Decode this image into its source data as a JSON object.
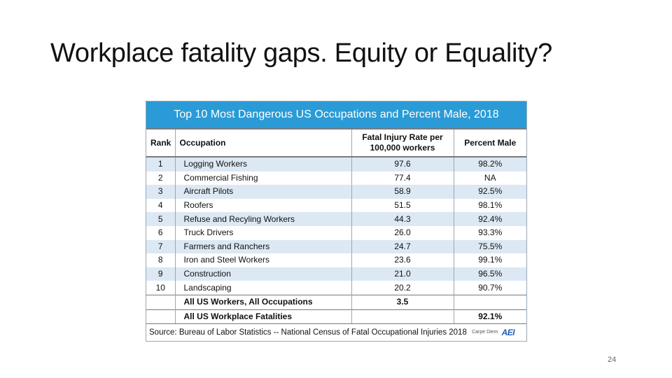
{
  "slide": {
    "title": "Workplace fatality gaps. Equity or Equality?",
    "page_number": "24"
  },
  "table": {
    "header": "Top 10 Most Dangerous US Occupations and Percent Male, 2018",
    "columns": {
      "rank": "Rank",
      "occupation": "Occupation",
      "rate_line1": "Fatal Injury Rate per",
      "rate_line2": "100,000 workers",
      "percent_male": "Percent Male"
    },
    "rows": [
      {
        "rank": "1",
        "occupation": "Logging Workers",
        "rate": "97.6",
        "percent_male": "98.2%"
      },
      {
        "rank": "2",
        "occupation": "Commercial Fishing",
        "rate": "77.4",
        "percent_male": "NA"
      },
      {
        "rank": "3",
        "occupation": "Aircraft Pilots",
        "rate": "58.9",
        "percent_male": "92.5%"
      },
      {
        "rank": "4",
        "occupation": "Roofers",
        "rate": "51.5",
        "percent_male": "98.1%"
      },
      {
        "rank": "5",
        "occupation": "Refuse and Recyling Workers",
        "rate": "44.3",
        "percent_male": "92.4%"
      },
      {
        "rank": "6",
        "occupation": "Truck Drivers",
        "rate": "26.0",
        "percent_male": "93.3%"
      },
      {
        "rank": "7",
        "occupation": "Farmers and Ranchers",
        "rate": "24.7",
        "percent_male": "75.5%"
      },
      {
        "rank": "8",
        "occupation": "Iron and Steel Workers",
        "rate": "23.6",
        "percent_male": "99.1%"
      },
      {
        "rank": "9",
        "occupation": "Construction",
        "rate": "21.0",
        "percent_male": "96.5%"
      },
      {
        "rank": "10",
        "occupation": "Landscaping",
        "rate": "20.2",
        "percent_male": "90.7%"
      }
    ],
    "summary": [
      {
        "label": "All US Workers, All Occupations",
        "rate": "3.5",
        "percent_male": ""
      },
      {
        "label": "All US Workplace Fatalities",
        "rate": "",
        "percent_male": "92.1%"
      }
    ],
    "source": "Source: Bureau of Labor Statistics -- National Census of Fatal Occupational Injuries 2018",
    "brand_text": "Carpe Diem",
    "logo_text": "AEI",
    "colors": {
      "header_bg": "#2a9bd6",
      "stripe": "#dce8f3"
    }
  }
}
